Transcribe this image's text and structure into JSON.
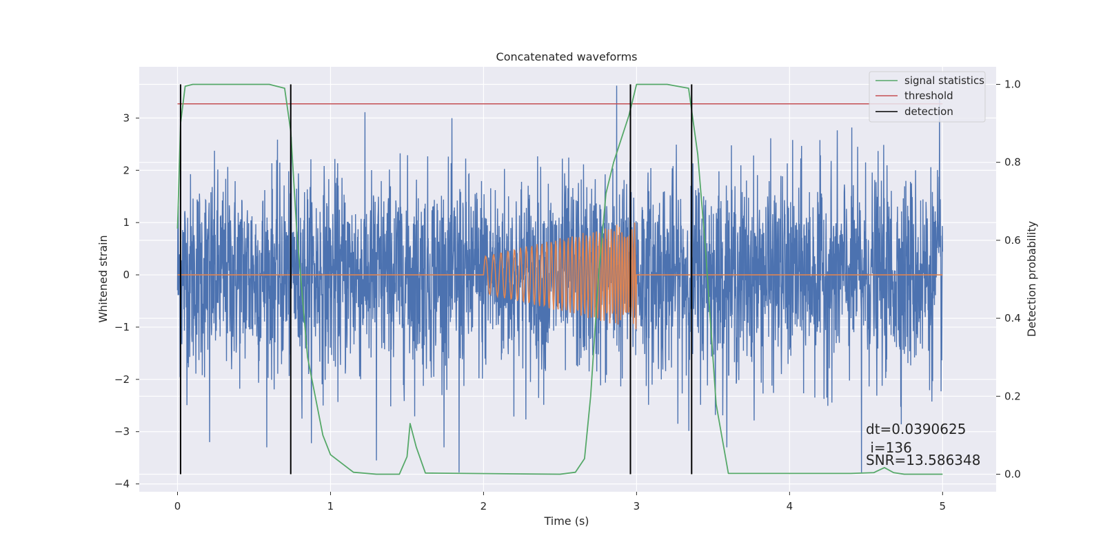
{
  "chart_data": {
    "type": "line",
    "title": "Concatenated waveforms",
    "xlabel": "Time (s)",
    "ylabel": "Whitened strain",
    "ylabel_right": "Detection probability",
    "xlim": [
      -0.25,
      5.35
    ],
    "ylim": [
      -4.15,
      3.98
    ],
    "ylim_right": [
      -0.045,
      1.045
    ],
    "xticks": [
      "0",
      "1",
      "2",
      "3",
      "4",
      "5"
    ],
    "yticks": [
      "3",
      "2",
      "1",
      "0",
      "−1",
      "−2",
      "−3",
      "−4"
    ],
    "yticks_right": [
      "1.0",
      "0.8",
      "0.6",
      "0.4",
      "0.2",
      "0.0"
    ],
    "grid": true,
    "legend_position": "upper right",
    "legend": [
      "signal statistics",
      "threshold",
      "detection"
    ],
    "colors": {
      "strain": "#4c72b0",
      "injection": "#dd8452",
      "signal_statistics": "#55a868",
      "threshold": "#c44e52",
      "detection": "#000000",
      "background": "#eaeaf2",
      "grid": "#ffffff"
    },
    "strain": {
      "x_range": [
        0,
        5
      ],
      "approx_range": [
        -3.78,
        3.62
      ],
      "notable_peaks": [
        {
          "x": 0.21,
          "y": -3.2
        },
        {
          "x": 1.3,
          "y": -3.55
        },
        {
          "x": 1.84,
          "y": -3.78
        },
        {
          "x": 2.87,
          "y": 3.62
        },
        {
          "x": 4.47,
          "y": -3.78
        },
        {
          "x": 4.98,
          "y": 3.35
        }
      ]
    },
    "injection": {
      "x_range": [
        2.0,
        3.0
      ],
      "amplitude_range": [
        0.35,
        1.05
      ],
      "description": "chirp"
    },
    "signal_statistics": {
      "x": [
        0,
        0.02,
        0.05,
        0.1,
        0.6,
        0.7,
        0.74,
        0.78,
        0.85,
        0.95,
        1.0,
        1.05,
        1.15,
        1.3,
        1.45,
        1.5,
        1.52,
        1.56,
        1.62,
        2.5,
        2.6,
        2.66,
        2.7,
        2.75,
        2.8,
        2.85,
        2.95,
        3.0,
        3.2,
        3.34,
        3.4,
        3.45,
        3.52,
        3.6,
        4.4,
        4.55,
        4.62,
        4.68,
        4.75,
        5.0
      ],
      "y": [
        0.63,
        0.9,
        0.995,
        1.0,
        1.0,
        0.99,
        0.88,
        0.62,
        0.3,
        0.1,
        0.05,
        0.035,
        0.005,
        0.0,
        0.0,
        0.045,
        0.13,
        0.07,
        0.003,
        0.0,
        0.005,
        0.04,
        0.2,
        0.5,
        0.72,
        0.8,
        0.92,
        1.0,
        1.0,
        0.99,
        0.82,
        0.58,
        0.18,
        0.002,
        0.002,
        0.004,
        0.017,
        0.004,
        0.0,
        0.0
      ]
    },
    "threshold": {
      "value": 0.95,
      "x_range": [
        0,
        5
      ]
    },
    "detections": [
      0.02,
      0.74,
      2.96,
      3.36
    ],
    "annotation": {
      "line1": "dt=0.0390625",
      "line2": " i=136",
      "line3": "SNR=13.586348"
    }
  }
}
